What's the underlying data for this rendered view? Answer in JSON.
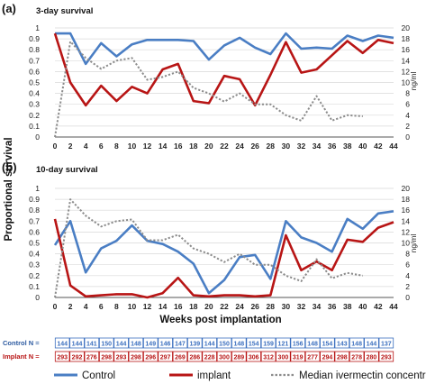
{
  "figure": {
    "ylabel": "Proportional survival",
    "xlabel": "Weeks post implantation",
    "y2unit": "ng/ml"
  },
  "chart_data": [
    {
      "type": "line",
      "panel_label": "(a)",
      "title": "3-day survival",
      "ylim": [
        0,
        1
      ],
      "yticks": [
        "0",
        "0.1",
        "0.2",
        "0.3",
        "0.4",
        "0.5",
        "0.6",
        "0.7",
        "0.8",
        "0.9",
        "1"
      ],
      "y2lim": [
        0,
        20
      ],
      "y2ticks": [
        "0",
        "2",
        "4",
        "6",
        "8",
        "10",
        "12",
        "14",
        "16",
        "18",
        "20"
      ],
      "xticks": [
        "0",
        "2",
        "4",
        "6",
        "8",
        "10",
        "12",
        "14",
        "16",
        "18",
        "20",
        "22",
        "24",
        "26",
        "28",
        "30",
        "32",
        "34",
        "36",
        "38",
        "40",
        "42",
        "44"
      ],
      "series": [
        {
          "name": "Control",
          "color": "#4a7ec4",
          "axis": "left",
          "x": [
            0,
            2,
            4,
            6,
            8,
            10,
            12,
            14,
            16,
            18,
            20,
            22,
            24,
            26,
            28,
            30,
            32,
            34,
            36,
            38,
            40,
            42,
            44
          ],
          "y": [
            0.95,
            0.95,
            0.67,
            0.86,
            0.74,
            0.85,
            0.89,
            0.89,
            0.89,
            0.88,
            0.71,
            0.84,
            0.91,
            0.82,
            0.76,
            0.95,
            0.81,
            0.82,
            0.81,
            0.93,
            0.88,
            0.93,
            0.91
          ]
        },
        {
          "name": "implant",
          "color": "#b81515",
          "axis": "left",
          "x": [
            0,
            2,
            4,
            6,
            8,
            10,
            12,
            14,
            16,
            18,
            20,
            22,
            24,
            26,
            28,
            30,
            32,
            34,
            36,
            38,
            40,
            42,
            44
          ],
          "y": [
            0.95,
            0.5,
            0.29,
            0.47,
            0.33,
            0.46,
            0.4,
            0.62,
            0.67,
            0.33,
            0.31,
            0.56,
            0.53,
            0.29,
            0.57,
            0.87,
            0.59,
            0.62,
            0.75,
            0.88,
            0.77,
            0.89,
            0.86
          ]
        },
        {
          "name": "Median ivermectin concentration",
          "color": "#8c8c8c",
          "axis": "right",
          "dashed": true,
          "x": [
            0,
            2,
            4,
            6,
            8,
            10,
            12,
            14,
            16,
            18,
            20,
            22,
            24,
            26,
            28,
            30,
            32,
            34,
            36,
            38,
            40
          ],
          "y": [
            0,
            17.5,
            14.5,
            12.5,
            14,
            14.5,
            10.5,
            11,
            12,
            9,
            8,
            6.5,
            8,
            6,
            6,
            4,
            3,
            7.5,
            3,
            4,
            3.8
          ]
        }
      ]
    },
    {
      "type": "line",
      "panel_label": "(b)",
      "title": "10-day survival",
      "ylim": [
        0,
        1
      ],
      "yticks": [
        "0",
        "0.1",
        "0.2",
        "0.3",
        "0.4",
        "0.5",
        "0.6",
        "0.7",
        "0.8",
        "0.9",
        "1"
      ],
      "y2lim": [
        0,
        20
      ],
      "y2ticks": [
        "0",
        "2",
        "4",
        "6",
        "8",
        "10",
        "12",
        "14",
        "16",
        "18",
        "20"
      ],
      "xticks": [
        "0",
        "2",
        "4",
        "6",
        "8",
        "10",
        "12",
        "14",
        "16",
        "18",
        "20",
        "22",
        "24",
        "26",
        "28",
        "30",
        "32",
        "34",
        "36",
        "38",
        "40",
        "42",
        "44"
      ],
      "series": [
        {
          "name": "Control",
          "color": "#4a7ec4",
          "axis": "left",
          "x": [
            0,
            2,
            4,
            6,
            8,
            10,
            12,
            14,
            16,
            18,
            20,
            22,
            24,
            26,
            28,
            30,
            32,
            34,
            36,
            38,
            40,
            42,
            44
          ],
          "y": [
            0.48,
            0.7,
            0.23,
            0.45,
            0.52,
            0.66,
            0.52,
            0.49,
            0.42,
            0.31,
            0.04,
            0.16,
            0.37,
            0.39,
            0.17,
            0.7,
            0.55,
            0.5,
            0.42,
            0.72,
            0.63,
            0.77,
            0.79
          ]
        },
        {
          "name": "implant",
          "color": "#b81515",
          "axis": "left",
          "x": [
            0,
            2,
            4,
            6,
            8,
            10,
            12,
            14,
            16,
            18,
            20,
            22,
            24,
            26,
            28,
            30,
            32,
            34,
            36,
            38,
            40,
            42,
            44
          ],
          "y": [
            0.72,
            0.11,
            0.01,
            0.02,
            0.03,
            0.03,
            0.0,
            0.04,
            0.18,
            0.02,
            0.01,
            0.02,
            0.02,
            0.01,
            0.02,
            0.57,
            0.25,
            0.33,
            0.25,
            0.53,
            0.51,
            0.64,
            0.69
          ]
        },
        {
          "name": "Median ivermectin concentration",
          "color": "#8c8c8c",
          "axis": "right",
          "dashed": true,
          "x": [
            0,
            2,
            4,
            6,
            8,
            10,
            12,
            14,
            16,
            18,
            20,
            22,
            24,
            26,
            28,
            30,
            32,
            34,
            36,
            38,
            40
          ],
          "y": [
            0,
            18,
            15,
            13,
            14,
            14.3,
            10.5,
            10.5,
            11.5,
            9,
            8,
            6.5,
            8,
            6,
            6,
            4,
            3,
            7,
            3.5,
            4.5,
            4
          ]
        }
      ]
    }
  ],
  "sample_sizes": {
    "control": {
      "label": "Control N =",
      "values": [
        "144",
        "144",
        "141",
        "150",
        "144",
        "148",
        "149",
        "146",
        "147",
        "139",
        "144",
        "150",
        "148",
        "154",
        "159",
        "121",
        "156",
        "148",
        "154",
        "143",
        "148",
        "144",
        "137"
      ]
    },
    "implant": {
      "label": "Implant N =",
      "values": [
        "293",
        "292",
        "276",
        "298",
        "293",
        "298",
        "296",
        "297",
        "269",
        "286",
        "228",
        "300",
        "289",
        "306",
        "312",
        "300",
        "319",
        "277",
        "294",
        "298",
        "278",
        "280",
        "293"
      ]
    }
  },
  "legend": [
    {
      "name": "Control",
      "color": "#4a7ec4",
      "dashed": false
    },
    {
      "name": "implant",
      "color": "#b81515",
      "dashed": false
    },
    {
      "name": "Median ivermectin concentration",
      "color": "#8c8c8c",
      "dashed": true
    }
  ]
}
